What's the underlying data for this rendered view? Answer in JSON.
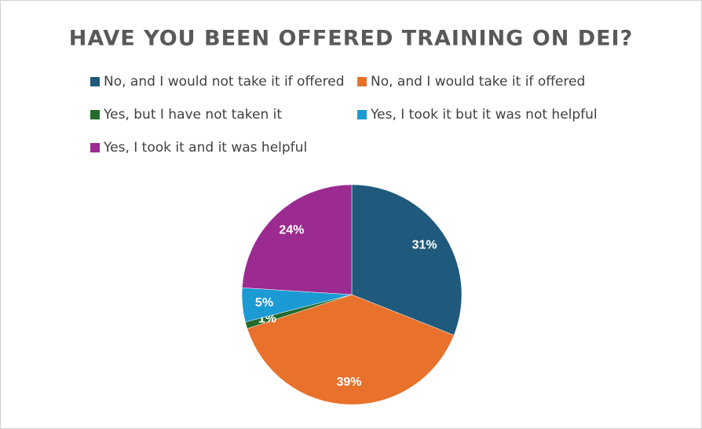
{
  "chart_data": {
    "type": "pie",
    "title": "HAVE YOU BEEN OFFERED TRAINING ON DEI?",
    "categories": [
      "No, and I would not take it if offered",
      "No, and I would take it if offered",
      "Yes, but I have not taken it",
      "Yes, I took it but it was not helpful",
      "Yes, I took it and it was helpful"
    ],
    "values": [
      31,
      39,
      1,
      5,
      24
    ],
    "value_labels": [
      "31%",
      "39%",
      "1%",
      "5%",
      "24%"
    ],
    "colors": [
      "#1f5a7c",
      "#e8712c",
      "#236b2c",
      "#1b9ad4",
      "#9b2b90"
    ],
    "legend": "top"
  }
}
